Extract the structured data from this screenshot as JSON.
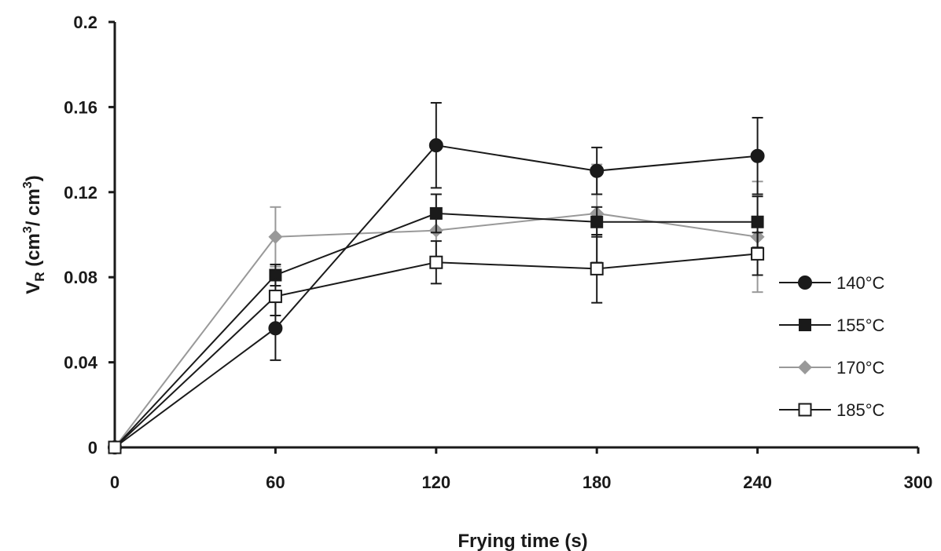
{
  "chart_data": {
    "type": "line",
    "xlabel": "Frying time (s)",
    "ylabel_main": "V",
    "ylabel_sub": "R",
    "ylabel_unit_parts": [
      " (cm",
      "3",
      "/ cm",
      "3",
      ")"
    ],
    "xlim": [
      0,
      300
    ],
    "ylim": [
      0,
      0.2
    ],
    "xticks": [
      0,
      60,
      120,
      180,
      240,
      300
    ],
    "xtick_labels": [
      "0",
      "60",
      "120",
      "180",
      "240",
      "300"
    ],
    "yticks": [
      0,
      0.04,
      0.08,
      0.12,
      0.16,
      0.2
    ],
    "ytick_labels": [
      "0",
      "0.04",
      "0.08",
      "0.12",
      "0.16",
      "0.2"
    ],
    "grid": false,
    "legend_position": "right",
    "x": [
      0,
      60,
      120,
      180,
      240
    ],
    "series": [
      {
        "name": "140°C",
        "marker": "circle",
        "color": "#1a1a1a",
        "values": [
          0,
          0.056,
          0.142,
          0.13,
          0.137
        ],
        "errors": [
          0,
          0.015,
          0.02,
          0.011,
          0.018
        ]
      },
      {
        "name": "155°C",
        "marker": "square",
        "color": "#1a1a1a",
        "values": [
          0,
          0.081,
          0.11,
          0.106,
          0.106
        ],
        "errors": [
          0,
          0.005,
          0.009,
          0.007,
          0.012
        ]
      },
      {
        "name": "170°C",
        "marker": "diamond",
        "color": "#999999",
        "values": [
          0,
          0.099,
          0.102,
          0.11,
          0.099
        ],
        "errors": [
          0,
          0.014,
          0.017,
          0.023,
          0.026
        ]
      },
      {
        "name": "185°C",
        "marker": "open-square",
        "color": "#1a1a1a",
        "values": [
          0,
          0.071,
          0.087,
          0.084,
          0.091
        ],
        "errors": [
          0,
          0.009,
          0.01,
          0.016,
          0.01
        ]
      }
    ]
  }
}
